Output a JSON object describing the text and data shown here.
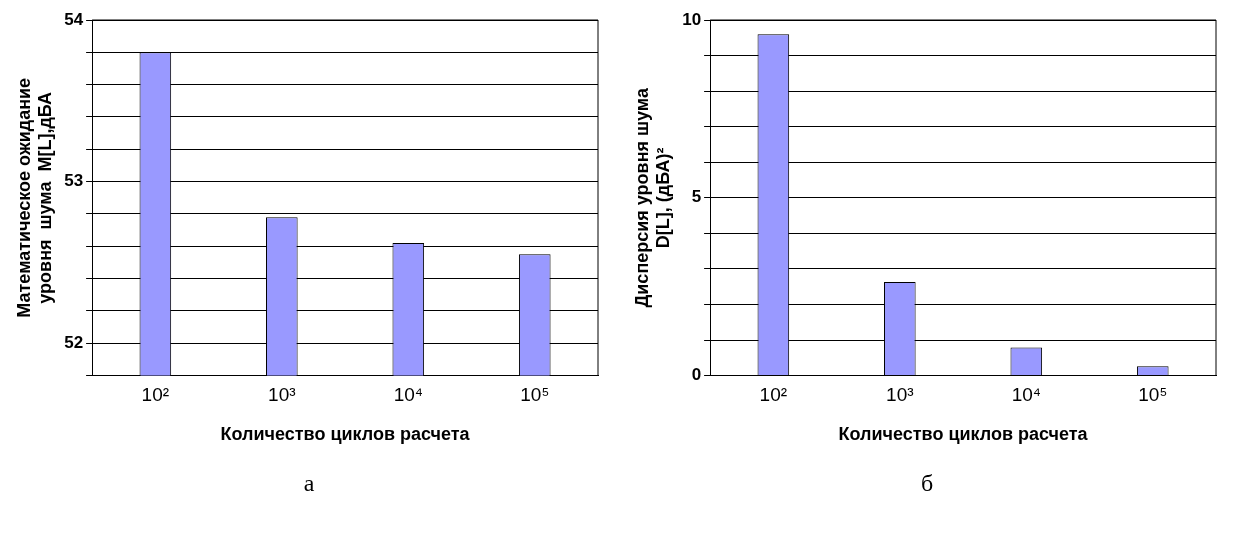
{
  "chart_data": [
    {
      "type": "bar",
      "xlabel": "Количество циклов расчета",
      "ylabel": "Математическое ожидание\nуровня  шума  M[L],дБА",
      "categories": [
        "10²",
        "10³",
        "10⁴",
        "10⁵"
      ],
      "values": [
        53.8,
        52.78,
        52.62,
        52.55
      ],
      "color": "#9999ff",
      "ylim": [
        51.8,
        54
      ],
      "yticks": [
        {
          "value": 51.8,
          "label": null
        },
        52,
        {
          "value": 52.2,
          "label": null
        },
        {
          "value": 52.4,
          "label": null
        },
        {
          "value": 52.6,
          "label": null
        },
        {
          "value": 52.8,
          "label": null
        },
        53,
        {
          "value": 53.2,
          "label": null
        },
        {
          "value": 53.4,
          "label": null
        },
        {
          "value": 53.6,
          "label": null
        },
        {
          "value": 53.8,
          "label": null
        },
        54
      ],
      "grid": "y",
      "annotations": [
        "а"
      ]
    },
    {
      "type": "bar",
      "xlabel": "Количество циклов расчета",
      "ylabel": "Дисперсия уровня шума\nD[L], (дБА)²",
      "categories": [
        "10²",
        "10³",
        "10⁴",
        "10⁵"
      ],
      "values": [
        9.6,
        2.63,
        0.79,
        0.26
      ],
      "color": "#9999ff",
      "ylim": [
        0,
        10
      ],
      "yticks": [
        0,
        {
          "value": 1,
          "label": null
        },
        {
          "value": 2,
          "label": null
        },
        {
          "value": 3,
          "label": null
        },
        {
          "value": 4,
          "label": null
        },
        5,
        {
          "value": 6,
          "label": null
        },
        {
          "value": 7,
          "label": null
        },
        {
          "value": 8,
          "label": null
        },
        {
          "value": 9,
          "label": null
        },
        10
      ],
      "grid": "y",
      "annotations": [
        "б"
      ]
    }
  ]
}
